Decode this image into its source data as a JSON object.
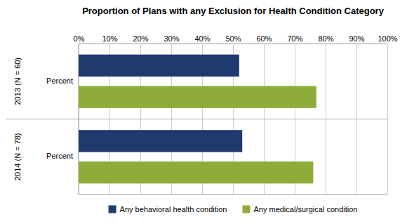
{
  "chart_data": {
    "type": "bar",
    "orientation": "horizontal",
    "title": "Proportion of Plans with any Exclusion for Health Condition Category",
    "categories": [
      "2013 (N = 60)",
      "2014 (N = 78)"
    ],
    "series": [
      {
        "name": "Any behavioral health condition",
        "color": "#1e3a6e",
        "values": [
          52,
          53
        ]
      },
      {
        "name": "Any medical/surgical condition",
        "color": "#8fac38",
        "values": [
          77,
          76
        ]
      }
    ],
    "xlim": [
      0,
      100
    ],
    "xticks": [
      {
        "value": 0,
        "label": "0%"
      },
      {
        "value": 10,
        "label": "10%"
      },
      {
        "value": 20,
        "label": "20%"
      },
      {
        "value": 30,
        "label": "30%"
      },
      {
        "value": 40,
        "label": "40%"
      },
      {
        "value": 50,
        "label": "50%"
      },
      {
        "value": 60,
        "label": "60%"
      },
      {
        "value": 70,
        "label": "70%"
      },
      {
        "value": 80,
        "label": "80%"
      },
      {
        "value": 90,
        "label": "90%"
      },
      {
        "value": 100,
        "label": "100%"
      }
    ],
    "grid": true,
    "legend": "bottom",
    "annotations": [
      "Percent",
      "Percent"
    ]
  }
}
